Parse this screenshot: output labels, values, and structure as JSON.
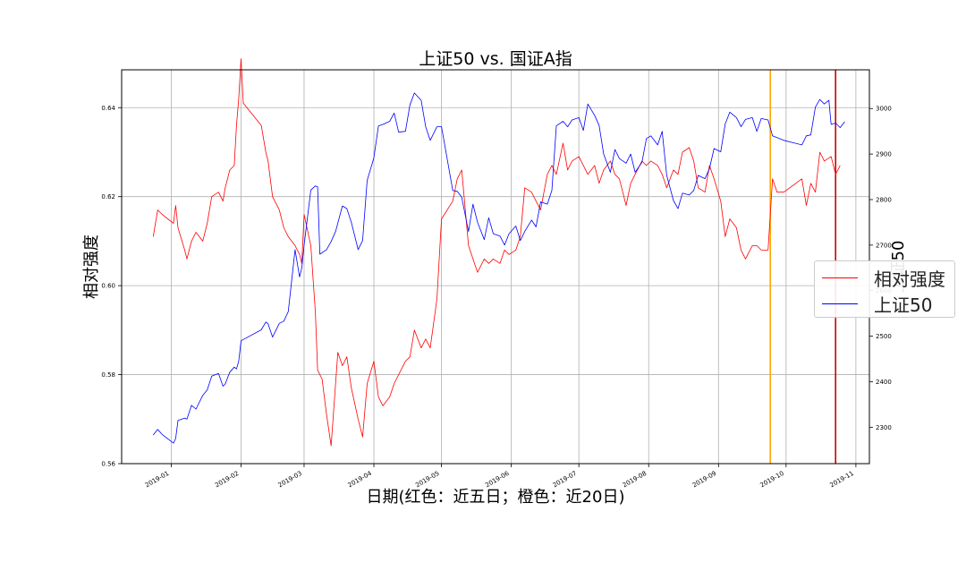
{
  "chart_data": {
    "type": "line",
    "title": "上证50 vs. 国证A指",
    "xlabel": "日期(红色：近五日；橙色：近20日)",
    "ylabel_left": "相对强度",
    "ylabel_right": "上证50",
    "x_ticks": [
      "2019-01",
      "2019-02",
      "2019-03",
      "2019-04",
      "2019-05",
      "2019-06",
      "2019-07",
      "2019-08",
      "2019-09",
      "2019-10",
      "2019-11"
    ],
    "y_left_ticks": [
      "0.56",
      "0.58",
      "0.60",
      "0.62",
      "0.64"
    ],
    "y_right_ticks": [
      "2300",
      "2400",
      "2500",
      "2600",
      "2700",
      "2800",
      "2900",
      "3000"
    ],
    "y_left_lim": [
      0.56,
      0.6485
    ],
    "y_right_lim": [
      2220,
      3085
    ],
    "x_lim": [
      "2018-12-10",
      "2019-11-07"
    ],
    "grid": true,
    "legend_position": "right",
    "markers": [
      {
        "date": "2019-09-24",
        "color": "#FFA500",
        "label": "近20日"
      },
      {
        "date": "2019-10-23",
        "color": "#cc0000",
        "label": "近五日"
      }
    ],
    "series": [
      {
        "name": "相对强度",
        "axis": "left",
        "color": "#ff0000",
        "points": [
          [
            "2018-12-24",
            0.611
          ],
          [
            "2018-12-26",
            0.617
          ],
          [
            "2018-12-28",
            0.616
          ],
          [
            "2019-01-02",
            0.614
          ],
          [
            "2019-01-03",
            0.618
          ],
          [
            "2019-01-04",
            0.613
          ],
          [
            "2019-01-07",
            0.608
          ],
          [
            "2019-01-08",
            0.606
          ],
          [
            "2019-01-10",
            0.61
          ],
          [
            "2019-01-12",
            0.612
          ],
          [
            "2019-01-15",
            0.61
          ],
          [
            "2019-01-17",
            0.614
          ],
          [
            "2019-01-19",
            0.62
          ],
          [
            "2019-01-22",
            0.621
          ],
          [
            "2019-01-24",
            0.619
          ],
          [
            "2019-01-25",
            0.622
          ],
          [
            "2019-01-27",
            0.626
          ],
          [
            "2019-01-29",
            0.627
          ],
          [
            "2019-01-30",
            0.636
          ],
          [
            "2019-01-31",
            0.642
          ],
          [
            "2019-02-01",
            0.651
          ],
          [
            "2019-02-02",
            0.641
          ],
          [
            "2019-02-10",
            0.636
          ],
          [
            "2019-02-12",
            0.63
          ],
          [
            "2019-02-13",
            0.628
          ],
          [
            "2019-02-15",
            0.62
          ],
          [
            "2019-02-18",
            0.617
          ],
          [
            "2019-02-20",
            0.613
          ],
          [
            "2019-02-22",
            0.611
          ],
          [
            "2019-02-25",
            0.609
          ],
          [
            "2019-02-27",
            0.607
          ],
          [
            "2019-02-28",
            0.605
          ],
          [
            "2019-03-01",
            0.616
          ],
          [
            "2019-03-04",
            0.609
          ],
          [
            "2019-03-06",
            0.594
          ],
          [
            "2019-03-07",
            0.581
          ],
          [
            "2019-03-09",
            0.579
          ],
          [
            "2019-03-11",
            0.571
          ],
          [
            "2019-03-13",
            0.564
          ],
          [
            "2019-03-15",
            0.578
          ],
          [
            "2019-03-16",
            0.585
          ],
          [
            "2019-03-18",
            0.582
          ],
          [
            "2019-03-20",
            0.584
          ],
          [
            "2019-03-22",
            0.577
          ],
          [
            "2019-03-25",
            0.57
          ],
          [
            "2019-03-27",
            0.566
          ],
          [
            "2019-03-29",
            0.578
          ],
          [
            "2019-04-01",
            0.583
          ],
          [
            "2019-04-03",
            0.575
          ],
          [
            "2019-04-05",
            0.573
          ],
          [
            "2019-04-08",
            0.575
          ],
          [
            "2019-04-10",
            0.578
          ],
          [
            "2019-04-12",
            0.58
          ],
          [
            "2019-04-15",
            0.583
          ],
          [
            "2019-04-17",
            0.584
          ],
          [
            "2019-04-19",
            0.59
          ],
          [
            "2019-04-22",
            0.586
          ],
          [
            "2019-04-24",
            0.588
          ],
          [
            "2019-04-26",
            0.586
          ],
          [
            "2019-04-29",
            0.597
          ],
          [
            "2019-05-01",
            0.615
          ],
          [
            "2019-05-06",
            0.619
          ],
          [
            "2019-05-08",
            0.624
          ],
          [
            "2019-05-10",
            0.626
          ],
          [
            "2019-05-13",
            0.609
          ],
          [
            "2019-05-15",
            0.606
          ],
          [
            "2019-05-17",
            0.603
          ],
          [
            "2019-05-20",
            0.606
          ],
          [
            "2019-05-22",
            0.605
          ],
          [
            "2019-05-24",
            0.606
          ],
          [
            "2019-05-27",
            0.605
          ],
          [
            "2019-05-29",
            0.608
          ],
          [
            "2019-05-31",
            0.607
          ],
          [
            "2019-06-03",
            0.608
          ],
          [
            "2019-06-05",
            0.611
          ],
          [
            "2019-06-07",
            0.622
          ],
          [
            "2019-06-10",
            0.621
          ],
          [
            "2019-06-12",
            0.619
          ],
          [
            "2019-06-14",
            0.617
          ],
          [
            "2019-06-17",
            0.625
          ],
          [
            "2019-06-19",
            0.627
          ],
          [
            "2019-06-21",
            0.625
          ],
          [
            "2019-06-24",
            0.632
          ],
          [
            "2019-06-26",
            0.626
          ],
          [
            "2019-06-28",
            0.628
          ],
          [
            "2019-07-01",
            0.629
          ],
          [
            "2019-07-03",
            0.627
          ],
          [
            "2019-07-05",
            0.625
          ],
          [
            "2019-07-08",
            0.627
          ],
          [
            "2019-07-10",
            0.623
          ],
          [
            "2019-07-12",
            0.626
          ],
          [
            "2019-07-15",
            0.628
          ],
          [
            "2019-07-17",
            0.625
          ],
          [
            "2019-07-19",
            0.624
          ],
          [
            "2019-07-22",
            0.618
          ],
          [
            "2019-07-24",
            0.623
          ],
          [
            "2019-07-26",
            0.625
          ],
          [
            "2019-07-29",
            0.628
          ],
          [
            "2019-07-31",
            0.627
          ],
          [
            "2019-08-02",
            0.628
          ],
          [
            "2019-08-05",
            0.627
          ],
          [
            "2019-08-07",
            0.625
          ],
          [
            "2019-08-09",
            0.622
          ],
          [
            "2019-08-12",
            0.626
          ],
          [
            "2019-08-14",
            0.625
          ],
          [
            "2019-08-16",
            0.63
          ],
          [
            "2019-08-19",
            0.631
          ],
          [
            "2019-08-21",
            0.628
          ],
          [
            "2019-08-23",
            0.622
          ],
          [
            "2019-08-26",
            0.621
          ],
          [
            "2019-08-28",
            0.627
          ],
          [
            "2019-08-30",
            0.624
          ],
          [
            "2019-09-02",
            0.619
          ],
          [
            "2019-09-04",
            0.611
          ],
          [
            "2019-09-06",
            0.615
          ],
          [
            "2019-09-09",
            0.613
          ],
          [
            "2019-09-11",
            0.608
          ],
          [
            "2019-09-13",
            0.606
          ],
          [
            "2019-09-16",
            0.609
          ],
          [
            "2019-09-18",
            0.609
          ],
          [
            "2019-09-20",
            0.608
          ],
          [
            "2019-09-23",
            0.608
          ],
          [
            "2019-09-25",
            0.624
          ],
          [
            "2019-09-27",
            0.621
          ],
          [
            "2019-09-30",
            0.621
          ],
          [
            "2019-10-08",
            0.624
          ],
          [
            "2019-10-10",
            0.618
          ],
          [
            "2019-10-12",
            0.623
          ],
          [
            "2019-10-14",
            0.621
          ],
          [
            "2019-10-16",
            0.63
          ],
          [
            "2019-10-18",
            0.628
          ],
          [
            "2019-10-21",
            0.629
          ],
          [
            "2019-10-23",
            0.625
          ],
          [
            "2019-10-25",
            0.627
          ]
        ]
      },
      {
        "name": "上证50",
        "axis": "right",
        "color": "#0000ff",
        "points": [
          [
            "2018-12-24",
            2283
          ],
          [
            "2018-12-26",
            2295
          ],
          [
            "2018-12-28",
            2284
          ],
          [
            "2019-01-02",
            2265
          ],
          [
            "2019-01-03",
            2275
          ],
          [
            "2019-01-04",
            2315
          ],
          [
            "2019-01-07",
            2320
          ],
          [
            "2019-01-08",
            2318
          ],
          [
            "2019-01-10",
            2348
          ],
          [
            "2019-01-12",
            2340
          ],
          [
            "2019-01-15",
            2370
          ],
          [
            "2019-01-17",
            2382
          ],
          [
            "2019-01-19",
            2412
          ],
          [
            "2019-01-22",
            2418
          ],
          [
            "2019-01-24",
            2390
          ],
          [
            "2019-01-25",
            2395
          ],
          [
            "2019-01-27",
            2421
          ],
          [
            "2019-01-29",
            2432
          ],
          [
            "2019-01-30",
            2428
          ],
          [
            "2019-01-31",
            2445
          ],
          [
            "2019-02-01",
            2490
          ],
          [
            "2019-02-10",
            2514
          ],
          [
            "2019-02-12",
            2531
          ],
          [
            "2019-02-13",
            2527
          ],
          [
            "2019-02-15",
            2498
          ],
          [
            "2019-02-18",
            2528
          ],
          [
            "2019-02-20",
            2533
          ],
          [
            "2019-02-22",
            2554
          ],
          [
            "2019-02-25",
            2690
          ],
          [
            "2019-02-27",
            2630
          ],
          [
            "2019-02-28",
            2650
          ],
          [
            "2019-03-01",
            2700
          ],
          [
            "2019-03-04",
            2821
          ],
          [
            "2019-03-06",
            2830
          ],
          [
            "2019-03-07",
            2828
          ],
          [
            "2019-03-08",
            2680
          ],
          [
            "2019-03-11",
            2690
          ],
          [
            "2019-03-13",
            2708
          ],
          [
            "2019-03-15",
            2730
          ],
          [
            "2019-03-18",
            2786
          ],
          [
            "2019-03-20",
            2780
          ],
          [
            "2019-03-22",
            2750
          ],
          [
            "2019-03-25",
            2690
          ],
          [
            "2019-03-27",
            2710
          ],
          [
            "2019-03-29",
            2842
          ],
          [
            "2019-04-01",
            2892
          ],
          [
            "2019-04-03",
            2962
          ],
          [
            "2019-04-05",
            2965
          ],
          [
            "2019-04-08",
            2972
          ],
          [
            "2019-04-10",
            2990
          ],
          [
            "2019-04-12",
            2948
          ],
          [
            "2019-04-15",
            2950
          ],
          [
            "2019-04-17",
            3008
          ],
          [
            "2019-04-19",
            3034
          ],
          [
            "2019-04-22",
            3018
          ],
          [
            "2019-04-24",
            2960
          ],
          [
            "2019-04-26",
            2930
          ],
          [
            "2019-04-29",
            2960
          ],
          [
            "2019-05-01",
            2960
          ],
          [
            "2019-05-06",
            2820
          ],
          [
            "2019-05-08",
            2818
          ],
          [
            "2019-05-10",
            2805
          ],
          [
            "2019-05-13",
            2730
          ],
          [
            "2019-05-15",
            2790
          ],
          [
            "2019-05-17",
            2750
          ],
          [
            "2019-05-20",
            2712
          ],
          [
            "2019-05-22",
            2760
          ],
          [
            "2019-05-24",
            2725
          ],
          [
            "2019-05-27",
            2720
          ],
          [
            "2019-05-29",
            2700
          ],
          [
            "2019-05-31",
            2725
          ],
          [
            "2019-06-03",
            2742
          ],
          [
            "2019-06-05",
            2710
          ],
          [
            "2019-06-07",
            2730
          ],
          [
            "2019-06-10",
            2755
          ],
          [
            "2019-06-12",
            2740
          ],
          [
            "2019-06-14",
            2795
          ],
          [
            "2019-06-17",
            2790
          ],
          [
            "2019-06-19",
            2820
          ],
          [
            "2019-06-21",
            2962
          ],
          [
            "2019-06-24",
            2972
          ],
          [
            "2019-06-26",
            2960
          ],
          [
            "2019-06-28",
            2975
          ],
          [
            "2019-07-01",
            2980
          ],
          [
            "2019-07-03",
            2952
          ],
          [
            "2019-07-05",
            3010
          ],
          [
            "2019-07-08",
            2985
          ],
          [
            "2019-07-10",
            2963
          ],
          [
            "2019-07-12",
            2900
          ],
          [
            "2019-07-15",
            2860
          ],
          [
            "2019-07-17",
            2910
          ],
          [
            "2019-07-19",
            2890
          ],
          [
            "2019-07-22",
            2880
          ],
          [
            "2019-07-24",
            2900
          ],
          [
            "2019-07-26",
            2860
          ],
          [
            "2019-07-29",
            2882
          ],
          [
            "2019-07-31",
            2934
          ],
          [
            "2019-08-02",
            2940
          ],
          [
            "2019-08-05",
            2920
          ],
          [
            "2019-08-07",
            2950
          ],
          [
            "2019-08-09",
            2853
          ],
          [
            "2019-08-12",
            2798
          ],
          [
            "2019-08-14",
            2780
          ],
          [
            "2019-08-16",
            2814
          ],
          [
            "2019-08-19",
            2810
          ],
          [
            "2019-08-21",
            2820
          ],
          [
            "2019-08-23",
            2853
          ],
          [
            "2019-08-26",
            2846
          ],
          [
            "2019-08-28",
            2868
          ],
          [
            "2019-08-30",
            2912
          ],
          [
            "2019-09-02",
            2905
          ],
          [
            "2019-09-04",
            2966
          ],
          [
            "2019-09-06",
            2992
          ],
          [
            "2019-09-09",
            2980
          ],
          [
            "2019-09-11",
            2960
          ],
          [
            "2019-09-13",
            2976
          ],
          [
            "2019-09-16",
            2980
          ],
          [
            "2019-09-18",
            2950
          ],
          [
            "2019-09-20",
            2978
          ],
          [
            "2019-09-23",
            2975
          ],
          [
            "2019-09-25",
            2940
          ],
          [
            "2019-09-27",
            2936
          ],
          [
            "2019-09-30",
            2930
          ],
          [
            "2019-10-08",
            2920
          ],
          [
            "2019-10-10",
            2940
          ],
          [
            "2019-10-12",
            2942
          ],
          [
            "2019-10-14",
            3003
          ],
          [
            "2019-10-16",
            3020
          ],
          [
            "2019-10-18",
            3010
          ],
          [
            "2019-10-20",
            3018
          ],
          [
            "2019-10-21",
            2965
          ],
          [
            "2019-10-23",
            2968
          ],
          [
            "2019-10-25",
            2958
          ],
          [
            "2019-10-27",
            2971
          ]
        ]
      }
    ]
  }
}
